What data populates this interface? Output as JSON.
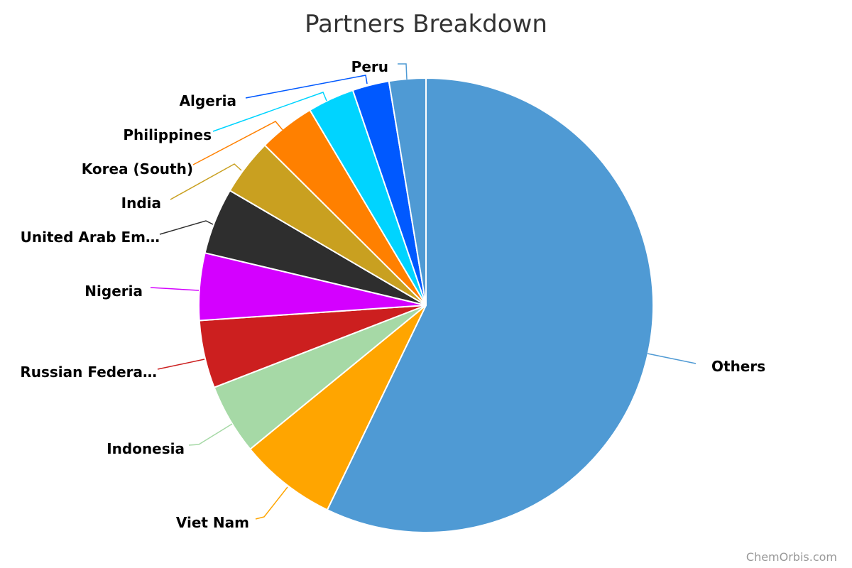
{
  "chart_data": {
    "type": "pie",
    "title": "Partners Breakdown",
    "credit": "ChemOrbis.com",
    "unit": "approximate share (%)",
    "slices": [
      {
        "label": "Others",
        "value": 56.9,
        "color": "#4f9ad4"
      },
      {
        "label": "Viet Nam",
        "value": 6.9,
        "color": "#ffa500"
      },
      {
        "label": "Indonesia",
        "value": 5.0,
        "color": "#a6d9a6"
      },
      {
        "label": "Russian Federa…",
        "value": 4.8,
        "color": "#cc1f1f"
      },
      {
        "label": "Nigeria",
        "value": 4.75,
        "color": "#d400ff"
      },
      {
        "label": "United Arab Em…",
        "value": 4.7,
        "color": "#2e2e2e"
      },
      {
        "label": "India",
        "value": 4.0,
        "color": "#c9a020"
      },
      {
        "label": "Korea (South)",
        "value": 4.0,
        "color": "#ff8000"
      },
      {
        "label": "Philippines",
        "value": 3.3,
        "color": "#00d4ff"
      },
      {
        "label": "Algeria",
        "value": 2.6,
        "color": "#0059ff"
      },
      {
        "label": "Peru",
        "value": 2.6,
        "color": "#4f9ad4"
      }
    ]
  }
}
